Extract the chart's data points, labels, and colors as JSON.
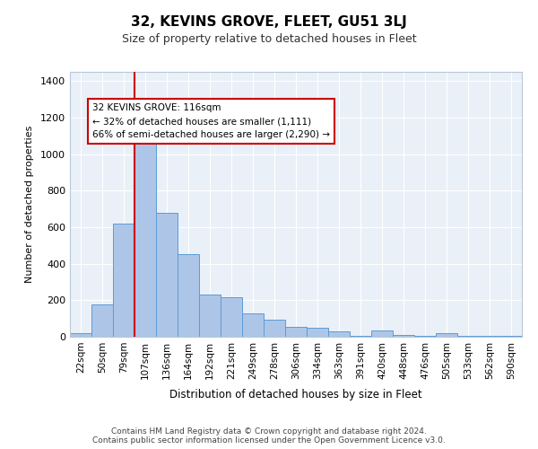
{
  "title": "32, KEVINS GROVE, FLEET, GU51 3LJ",
  "subtitle": "Size of property relative to detached houses in Fleet",
  "xlabel": "Distribution of detached houses by size in Fleet",
  "ylabel": "Number of detached properties",
  "bar_color": "#adc6e8",
  "bar_edge_color": "#5b9bd5",
  "background_color": "#eaf0f8",
  "grid_color": "#ffffff",
  "line_color": "#cc0000",
  "annotation_text": "32 KEVINS GROVE: 116sqm\n← 32% of detached houses are smaller (1,111)\n66% of semi-detached houses are larger (2,290) →",
  "footer_line1": "Contains HM Land Registry data © Crown copyright and database right 2024.",
  "footer_line2": "Contains public sector information licensed under the Open Government Licence v3.0.",
  "categories": [
    "22sqm",
    "50sqm",
    "79sqm",
    "107sqm",
    "136sqm",
    "164sqm",
    "192sqm",
    "221sqm",
    "249sqm",
    "278sqm",
    "306sqm",
    "334sqm",
    "363sqm",
    "391sqm",
    "420sqm",
    "448sqm",
    "476sqm",
    "505sqm",
    "533sqm",
    "562sqm",
    "590sqm"
  ],
  "values": [
    18,
    175,
    620,
    1110,
    680,
    450,
    230,
    215,
    130,
    95,
    55,
    50,
    28,
    6,
    33,
    10,
    5,
    18,
    5,
    5,
    5
  ],
  "ylim": [
    0,
    1450
  ],
  "yticks": [
    0,
    200,
    400,
    600,
    800,
    1000,
    1200,
    1400
  ],
  "prop_bin_index": 3
}
